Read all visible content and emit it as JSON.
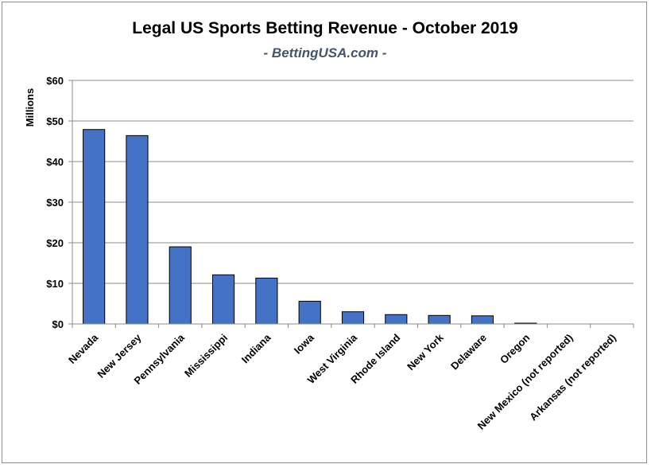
{
  "chart_data": {
    "type": "bar",
    "title": "Legal US Sports Betting Revenue - October 2019",
    "subtitle": "- BettingUSA.com -",
    "xlabel": "",
    "ylabel": "Millions",
    "ylim": [
      0,
      60
    ],
    "yticks": [
      "$0",
      "$10",
      "$20",
      "$30",
      "$40",
      "$50",
      "$60"
    ],
    "ytick_values": [
      0,
      10,
      20,
      30,
      40,
      50,
      60
    ],
    "grid": true,
    "legend": "none",
    "bar_color": "#4472c4",
    "categories": [
      "Nevada",
      "New Jersey",
      "Pennsylvania",
      "Mississippi",
      "Indiana",
      "Iowa",
      "West Virginia",
      "Rhode Island",
      "New York",
      "Delaware",
      "Oregon",
      "New Mexico (not reported)",
      "Arkansas (not reported)"
    ],
    "values": [
      47.9,
      46.4,
      19.0,
      12.1,
      11.3,
      5.6,
      3.0,
      2.3,
      2.1,
      2.0,
      0.1,
      0,
      0
    ]
  }
}
